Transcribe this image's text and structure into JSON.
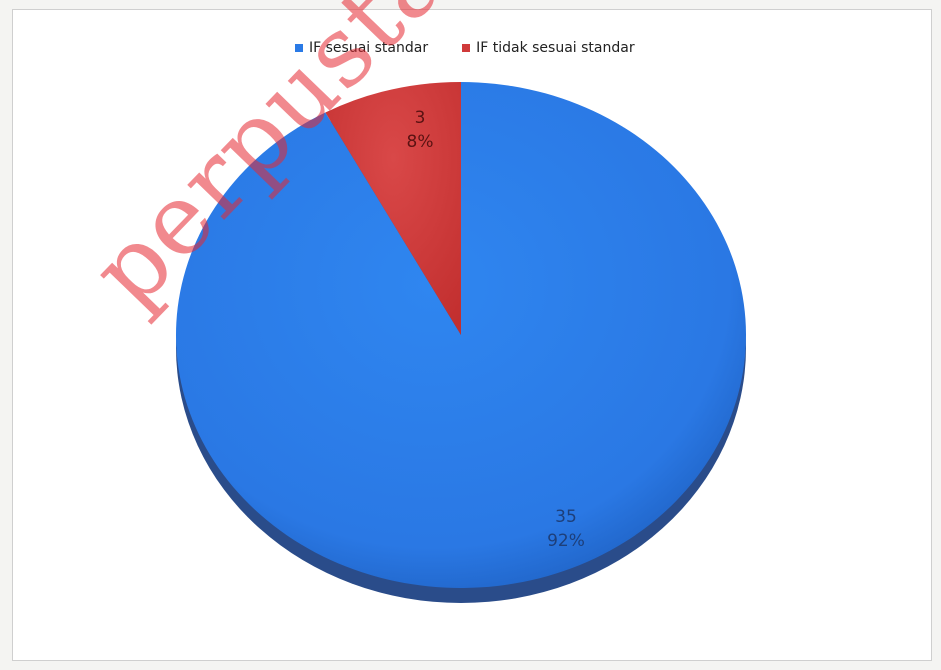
{
  "chart_data": {
    "type": "pie",
    "categories": [
      "IF sesuai standar",
      "IF tidak sesuai standar"
    ],
    "values": [
      35,
      3
    ],
    "percent_labels": [
      "92%",
      "8%"
    ],
    "colors": [
      "#2a7ae6",
      "#d03a3a"
    ],
    "legend_position": "top"
  },
  "legend": {
    "item1": "IF sesuai standar",
    "item2": "IF tidak sesuai standar"
  },
  "watermark": "perpustakaan..."
}
